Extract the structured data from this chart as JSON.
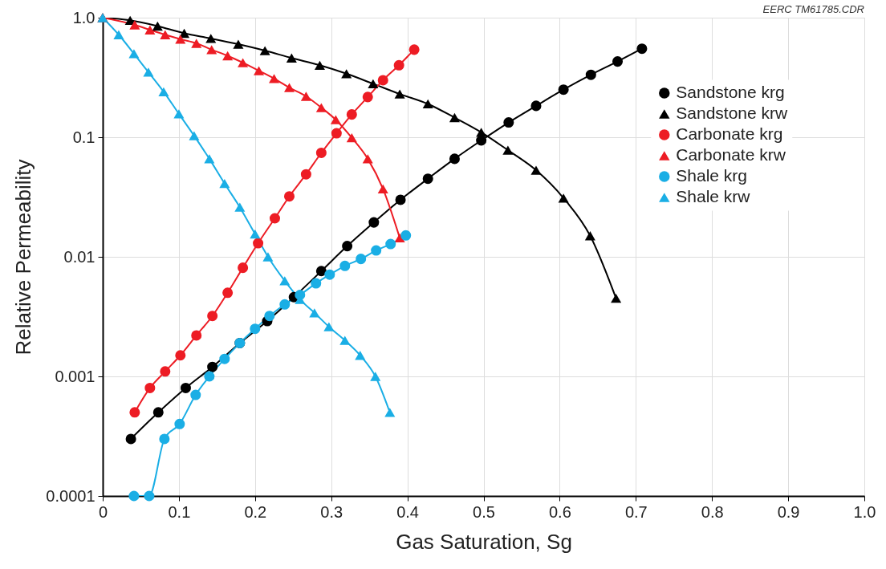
{
  "chart_data": {
    "type": "line",
    "xlabel": "Gas Saturation, Sg",
    "ylabel": "Relative Permeability",
    "annotations": [
      "EERC TM61785.CDR"
    ],
    "xlim": [
      0,
      1
    ],
    "xticks": [
      0,
      0.1,
      0.2,
      0.3,
      0.4,
      0.5,
      0.6,
      0.7,
      0.8,
      0.9,
      {
        "value": 1,
        "label": "1.0"
      }
    ],
    "ylim": [
      0.0001,
      1
    ],
    "yticks": [
      0.0001,
      0.001,
      0.01,
      0.1,
      {
        "value": 1,
        "label": "1.0"
      }
    ],
    "log": "y",
    "grid": true,
    "legend": "right",
    "line_style": "solid",
    "series": [
      {
        "name": "Sandstone krg",
        "color": "#000000",
        "marker": "circle",
        "x": [
          0.037,
          0.073,
          0.109,
          0.144,
          0.18,
          0.216,
          0.251,
          0.287,
          0.321,
          0.356,
          0.391,
          0.427,
          0.462,
          0.497,
          0.533,
          0.569,
          0.605,
          0.641,
          0.676,
          0.708
        ],
        "values": [
          0.0003,
          0.0005,
          0.0008,
          0.0012,
          0.0019,
          0.0029,
          0.0046,
          0.0076,
          0.0123,
          0.0194,
          0.03,
          0.045,
          0.066,
          0.094,
          0.133,
          0.183,
          0.25,
          0.333,
          0.43,
          0.55
        ]
      },
      {
        "name": "Sandstone krw",
        "color": "#000000",
        "marker": "triangle",
        "x": [
          0,
          0.036,
          0.072,
          0.107,
          0.142,
          0.178,
          0.213,
          0.248,
          0.285,
          0.32,
          0.355,
          0.39,
          0.427,
          0.462,
          0.497,
          0.532,
          0.569,
          0.605,
          0.64,
          0.674
        ],
        "values": [
          1,
          0.95,
          0.85,
          0.74,
          0.67,
          0.6,
          0.53,
          0.46,
          0.4,
          0.34,
          0.28,
          0.23,
          0.19,
          0.146,
          0.11,
          0.078,
          0.053,
          0.031,
          0.015,
          0.0045
        ]
      },
      {
        "name": "Carbonate krg",
        "color": "#ed1c24",
        "marker": "circle",
        "x": [
          0.042,
          0.062,
          0.082,
          0.102,
          0.123,
          0.144,
          0.164,
          0.184,
          0.204,
          0.226,
          0.245,
          0.267,
          0.287,
          0.307,
          0.327,
          0.348,
          0.368,
          0.389,
          0.409
        ],
        "values": [
          0.0005,
          0.0008,
          0.0011,
          0.0015,
          0.0022,
          0.0032,
          0.005,
          0.0081,
          0.013,
          0.021,
          0.032,
          0.049,
          0.074,
          0.108,
          0.155,
          0.217,
          0.3,
          0.4,
          0.54
        ]
      },
      {
        "name": "Carbonate krw",
        "color": "#ed1c24",
        "marker": "triangle",
        "x": [
          0,
          0.042,
          0.062,
          0.082,
          0.102,
          0.123,
          0.143,
          0.164,
          0.184,
          0.205,
          0.225,
          0.245,
          0.267,
          0.287,
          0.306,
          0.327,
          0.348,
          0.368,
          0.39
        ],
        "values": [
          1,
          0.87,
          0.79,
          0.72,
          0.66,
          0.61,
          0.54,
          0.48,
          0.42,
          0.36,
          0.31,
          0.26,
          0.22,
          0.177,
          0.14,
          0.099,
          0.066,
          0.037,
          0.0144
        ]
      },
      {
        "name": "Shale krg",
        "color": "#1aaee5",
        "marker": "circle",
        "x": [
          0.041,
          0.061,
          0.081,
          0.101,
          0.122,
          0.14,
          0.16,
          0.18,
          0.2,
          0.219,
          0.239,
          0.259,
          0.28,
          0.298,
          0.318,
          0.339,
          0.359,
          0.378,
          0.398
        ],
        "values": [
          0.0001,
          0.0001,
          0.0003,
          0.0004,
          0.0007,
          0.001,
          0.0014,
          0.0019,
          0.0025,
          0.0032,
          0.004,
          0.0048,
          0.006,
          0.0071,
          0.0084,
          0.0096,
          0.0113,
          0.0128,
          0.0151
        ]
      },
      {
        "name": "Shale krw",
        "color": "#1aaee5",
        "marker": "triangle",
        "x": [
          0,
          0.021,
          0.041,
          0.06,
          0.08,
          0.1,
          0.12,
          0.14,
          0.16,
          0.18,
          0.2,
          0.217,
          0.239,
          0.259,
          0.278,
          0.297,
          0.318,
          0.338,
          0.358,
          0.377
        ],
        "values": [
          1,
          0.72,
          0.5,
          0.35,
          0.24,
          0.157,
          0.103,
          0.066,
          0.041,
          0.026,
          0.0155,
          0.01,
          0.0063,
          0.0044,
          0.0034,
          0.0026,
          0.002,
          0.0015,
          0.001,
          0.0005
        ]
      }
    ]
  }
}
